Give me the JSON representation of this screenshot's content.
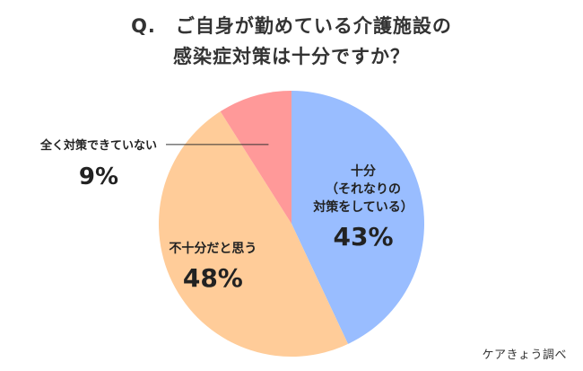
{
  "title": {
    "prefix": "Q.",
    "line1": "ご自身が勤めている介護施設の",
    "line2": "感染症対策は十分ですか？"
  },
  "source": "ケアきょう調べ",
  "chart_data": {
    "type": "pie",
    "slices": [
      {
        "label_lines": [
          "十分",
          "（それなりの",
          "対策をしている）"
        ],
        "value": 43,
        "value_text": "43%",
        "color": "#99bdff"
      },
      {
        "label_lines": [
          "不十分だと思う"
        ],
        "value": 48,
        "value_text": "48%",
        "color": "#ffcc99"
      },
      {
        "label_lines": [
          "全く対策できていない"
        ],
        "value": 9,
        "value_text": "9%",
        "color": "#ff9999"
      }
    ]
  }
}
